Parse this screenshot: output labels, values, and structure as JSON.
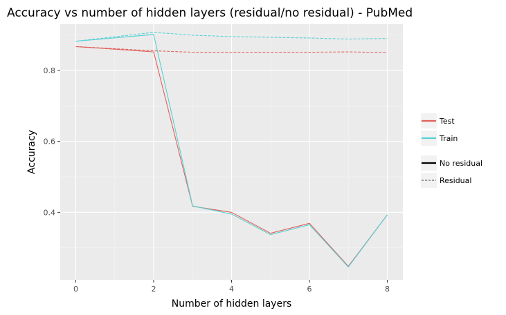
{
  "chart_data": {
    "type": "line",
    "title": "Accuracy vs number of hidden layers (residual/no residual) - PubMed",
    "xlabel": "Number of hidden layers",
    "ylabel": "Accuracy",
    "xlim": [
      -0.4,
      8.4
    ],
    "ylim": [
      0.21,
      0.93
    ],
    "x_ticks": [
      0,
      2,
      4,
      6,
      8
    ],
    "y_ticks": [
      0.4,
      0.6,
      0.8
    ],
    "x_minor": [
      1,
      3,
      5,
      7
    ],
    "y_minor": [
      0.3,
      0.5,
      0.7,
      0.9
    ],
    "grid": true,
    "legend_position": "right",
    "x": [
      0,
      2,
      3,
      4,
      5,
      6,
      7,
      8
    ],
    "series": [
      {
        "name": "Test",
        "variant": "No residual",
        "color": "#e0605a",
        "dash": "solid",
        "values": [
          0.867,
          0.852,
          0.417,
          0.4,
          0.341,
          0.369,
          0.248,
          0.393
        ]
      },
      {
        "name": "Train",
        "variant": "No residual",
        "color": "#58d0d4",
        "dash": "solid",
        "values": [
          0.882,
          0.901,
          0.418,
          0.395,
          0.337,
          0.365,
          0.246,
          0.393
        ]
      },
      {
        "name": "Test",
        "variant": "Residual",
        "color": "#e0605a",
        "dash": "dashed",
        "values": [
          0.867,
          0.855,
          0.851,
          0.851,
          0.851,
          0.851,
          0.852,
          0.85
        ]
      },
      {
        "name": "Train",
        "variant": "Residual",
        "color": "#58d0d4",
        "dash": "dashed",
        "values": [
          0.882,
          0.907,
          0.899,
          0.895,
          0.893,
          0.891,
          0.888,
          0.89
        ]
      }
    ],
    "legend": {
      "color_keys": [
        {
          "label": "Test",
          "color": "#e0605a"
        },
        {
          "label": "Train",
          "color": "#58d0d4"
        }
      ],
      "linetype_keys": [
        {
          "label": "No residual",
          "dash": "solid"
        },
        {
          "label": "Residual",
          "dash": "dashed"
        }
      ]
    }
  }
}
